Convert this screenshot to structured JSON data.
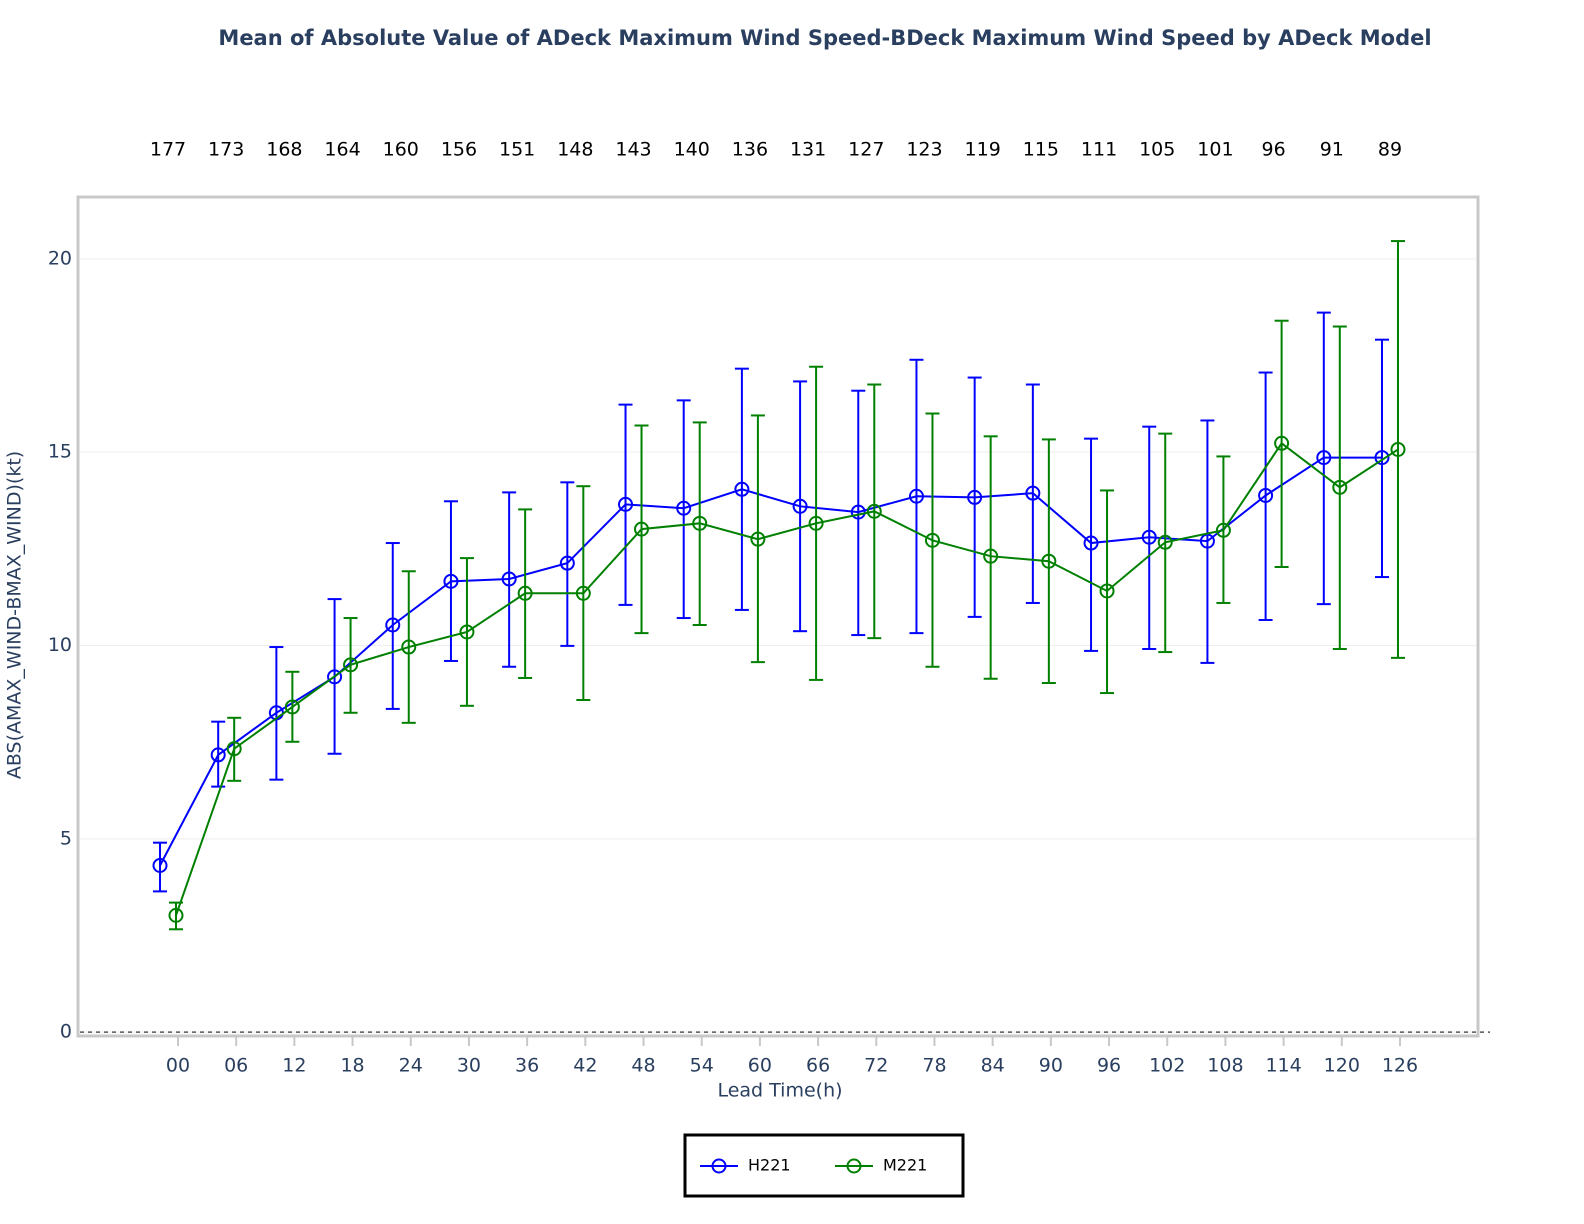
{
  "chart_data": {
    "type": "line",
    "title": "Mean of Absolute Value of ADeck Maximum Wind Speed-BDeck Maximum Wind Speed by ADeck Model",
    "x_label": "Lead Time(h)",
    "y_label": "ABS(AMAX_WIND-BMAX_WIND)(kt)",
    "categories": [
      "00",
      "06",
      "12",
      "18",
      "24",
      "30",
      "36",
      "42",
      "48",
      "54",
      "60",
      "66",
      "72",
      "78",
      "84",
      "90",
      "96",
      "102",
      "108",
      "114",
      "120",
      "126"
    ],
    "counts": [
      177,
      173,
      168,
      164,
      160,
      156,
      151,
      148,
      143,
      140,
      136,
      131,
      127,
      123,
      119,
      115,
      111,
      105,
      101,
      96,
      91,
      89
    ],
    "ylim": [
      -0.1,
      21.6
    ],
    "yticks": [
      0,
      5,
      10,
      15,
      20
    ],
    "legend": "bottom",
    "series": [
      {
        "name": "H221",
        "color": "#0000ff",
        "values": [
          4.31,
          7.17,
          8.26,
          9.19,
          10.53,
          11.66,
          11.72,
          12.13,
          13.65,
          13.55,
          14.04,
          13.6,
          13.45,
          13.86,
          13.83,
          13.94,
          12.65,
          12.8,
          12.7,
          13.88,
          14.86,
          14.86
        ],
        "error_upper": [
          4.9,
          8.03,
          9.96,
          11.2,
          12.65,
          13.73,
          13.96,
          14.22,
          16.23,
          16.34,
          17.16,
          16.83,
          16.59,
          17.39,
          16.93,
          16.75,
          15.35,
          15.66,
          15.82,
          17.06,
          18.61,
          17.91
        ],
        "error_lower": [
          3.64,
          6.35,
          6.53,
          7.2,
          8.36,
          9.6,
          9.45,
          9.99,
          11.05,
          10.71,
          10.92,
          10.37,
          10.27,
          10.32,
          10.74,
          11.1,
          9.86,
          9.91,
          9.55,
          10.66,
          11.07,
          11.77
        ]
      },
      {
        "name": "M221",
        "color": "#008000",
        "values": [
          3.02,
          7.33,
          8.41,
          9.5,
          9.96,
          10.35,
          11.35,
          11.35,
          13.01,
          13.16,
          12.75,
          13.16,
          13.47,
          12.72,
          12.31,
          12.18,
          11.41,
          12.67,
          12.98,
          15.23,
          14.09,
          15.07
        ],
        "error_upper": [
          3.35,
          8.13,
          9.32,
          10.71,
          11.92,
          12.26,
          13.52,
          14.12,
          15.69,
          15.77,
          15.95,
          17.21,
          16.75,
          16.0,
          15.41,
          15.33,
          14.01,
          15.48,
          14.89,
          18.4,
          18.25,
          20.46
        ],
        "error_lower": [
          2.66,
          6.5,
          7.51,
          8.26,
          8.0,
          8.44,
          9.16,
          8.59,
          10.32,
          10.53,
          9.57,
          9.11,
          10.19,
          9.45,
          9.14,
          9.03,
          8.77,
          9.83,
          11.1,
          12.03,
          9.91,
          9.68
        ]
      }
    ]
  }
}
